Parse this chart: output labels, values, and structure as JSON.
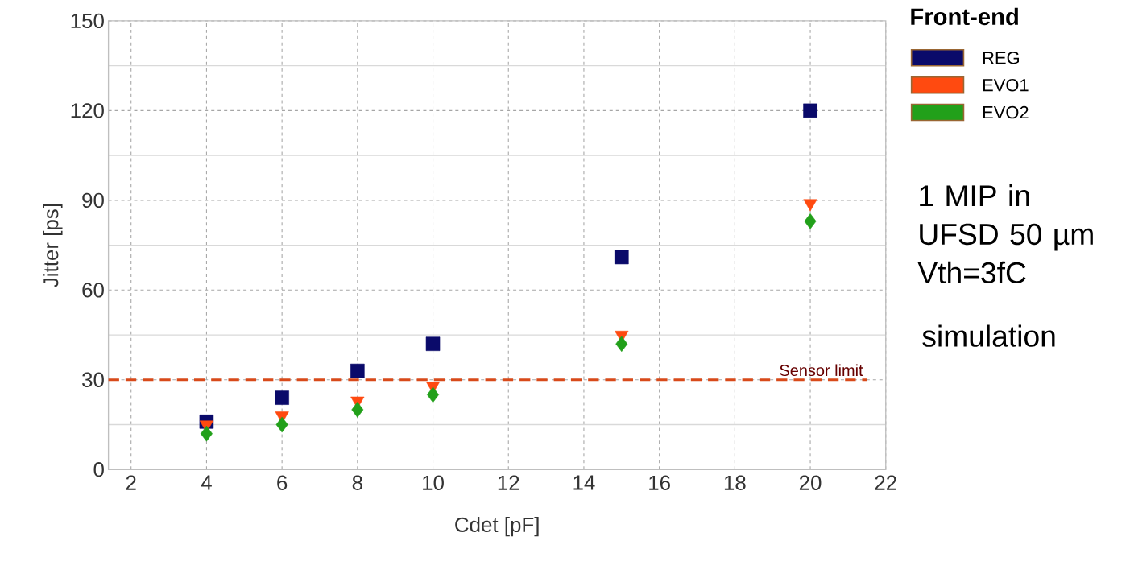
{
  "chart_data": {
    "type": "scatter",
    "xlabel": "Cdet [pF]",
    "ylabel": "Jitter [ps]",
    "legend_title": "Front-end",
    "x": [
      4,
      6,
      8,
      10,
      15,
      20
    ],
    "series": [
      {
        "name": "REG",
        "color": "#0a0a6a",
        "marker": "square",
        "values": [
          16,
          24,
          33,
          42,
          71,
          120
        ]
      },
      {
        "name": "EVO1",
        "color": "#ff4a10",
        "marker": "triangle",
        "values": [
          15,
          18,
          23,
          28,
          45,
          89
        ]
      },
      {
        "name": "EVO2",
        "color": "#22a01a",
        "marker": "diamond",
        "values": [
          12,
          15,
          20,
          25,
          42,
          83
        ]
      }
    ],
    "xlim": [
      1.4,
      22
    ],
    "ylim": [
      0,
      150
    ],
    "xticks": [
      2,
      4,
      6,
      8,
      10,
      12,
      14,
      16,
      18,
      20,
      22
    ],
    "yticks": [
      0,
      30,
      60,
      90,
      120,
      150
    ],
    "ref_lines": [
      {
        "axis": "y",
        "value": 30,
        "label": "Sensor limit",
        "color": "#d84a1a",
        "line_style": "dashed"
      }
    ],
    "annotations": [
      "1 MIP in UFSD 50 µm Vth=3fC",
      "simulation"
    ],
    "grid": true,
    "legend": "top right"
  }
}
